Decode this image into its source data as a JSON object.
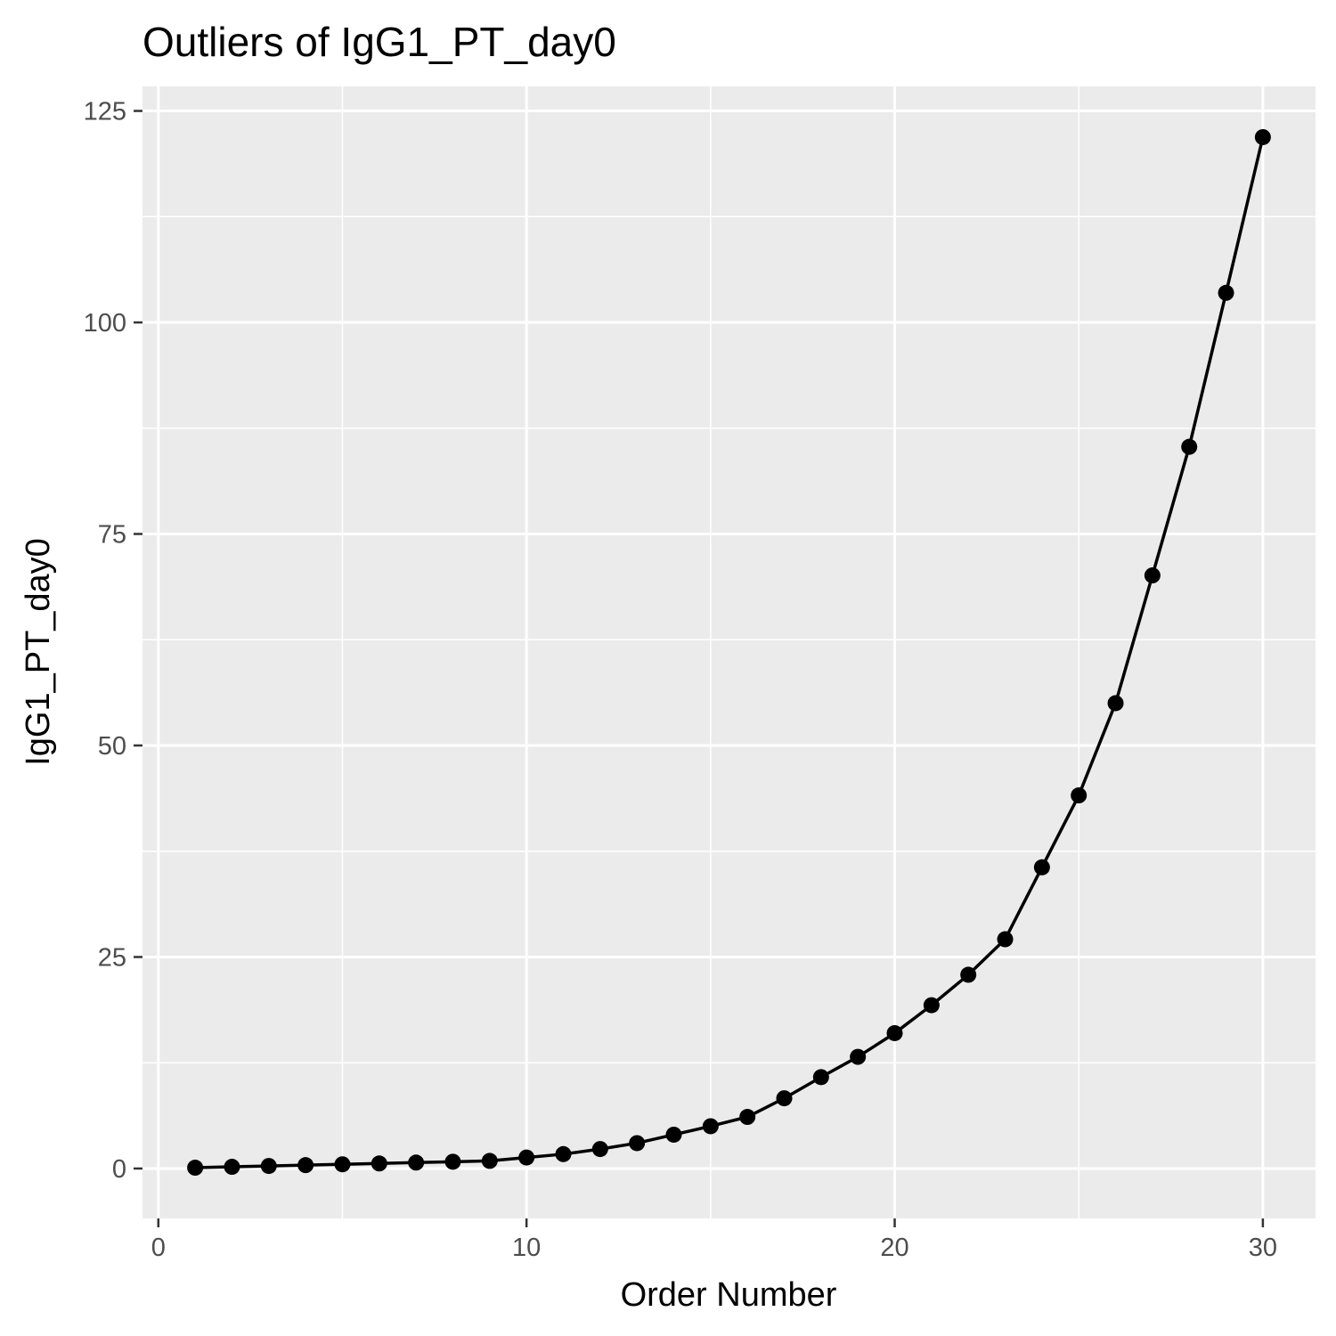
{
  "chart_data": {
    "type": "line",
    "title": "Outliers of IgG1_PT_day0",
    "xlabel": "Order Number",
    "ylabel": "IgG1_PT_day0",
    "xlim": [
      -0.43,
      31.43
    ],
    "ylim": [
      -5.9,
      127.9
    ],
    "x_ticks": [
      0,
      10,
      20,
      30
    ],
    "x_minor_ticks": [
      5,
      15,
      25
    ],
    "y_ticks": [
      0,
      25,
      50,
      75,
      100,
      125
    ],
    "y_minor_ticks": [
      12.5,
      37.5,
      62.5,
      87.5,
      112.5
    ],
    "grid": true,
    "legend": "none",
    "colors": {
      "panel": "#ebebeb",
      "grid": "#ffffff",
      "series": "#000000",
      "tick": "#4d4d4d"
    },
    "series": [
      {
        "x": [
          1,
          2,
          3,
          4,
          5,
          6,
          7,
          8,
          9,
          10,
          11,
          12,
          13,
          14,
          15,
          16,
          17,
          18,
          19,
          20,
          21,
          22,
          23,
          24,
          25,
          26,
          27,
          28,
          29,
          30
        ],
        "y": [
          0.1,
          0.2,
          0.3,
          0.4,
          0.5,
          0.6,
          0.7,
          0.8,
          0.9,
          1.3,
          1.7,
          2.3,
          3.0,
          4.0,
          5.0,
          6.1,
          8.3,
          10.8,
          13.2,
          16.0,
          19.3,
          22.9,
          27.1,
          35.6,
          44.1,
          55.0,
          70.1,
          85.3,
          103.5,
          121.9
        ]
      }
    ]
  }
}
